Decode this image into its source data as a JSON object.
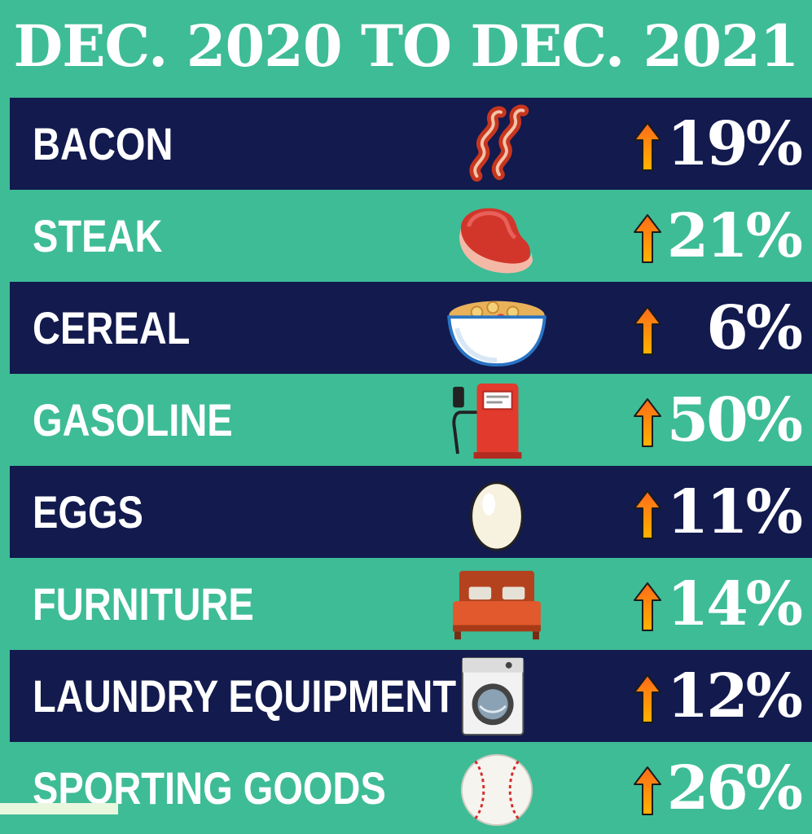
{
  "title": "DEC. 2020 TO DEC. 2021",
  "colors": {
    "background": "#3ebc96",
    "dark_band": "#121a4e",
    "text": "#ffffff",
    "arrow_top": "#ff6a1a",
    "arrow_bottom": "#ffb300"
  },
  "chart_data": {
    "type": "table",
    "title": "DEC. 2020 TO DEC. 2021",
    "columns": [
      "item",
      "icon",
      "trend",
      "change"
    ],
    "rows": [
      {
        "item": "BACON",
        "icon": "bacon-icon",
        "trend": "up",
        "change": "19%",
        "value": 19
      },
      {
        "item": "STEAK",
        "icon": "steak-icon",
        "trend": "up",
        "change": "21%",
        "value": 21
      },
      {
        "item": "CEREAL",
        "icon": "cereal-bowl-icon",
        "trend": "up",
        "change": "6%",
        "value": 6
      },
      {
        "item": "GASOLINE",
        "icon": "gas-pump-icon",
        "trend": "up",
        "change": "50%",
        "value": 50
      },
      {
        "item": "EGGS",
        "icon": "egg-icon",
        "trend": "up",
        "change": "11%",
        "value": 11
      },
      {
        "item": "FURNITURE",
        "icon": "bed-icon",
        "trend": "up",
        "change": "14%",
        "value": 14
      },
      {
        "item": "LAUNDRY EQUIPMENT",
        "icon": "washing-machine-icon",
        "trend": "up",
        "change": "12%",
        "value": 12
      },
      {
        "item": "SPORTING GOODS",
        "icon": "baseball-icon",
        "trend": "up",
        "change": "26%",
        "value": 26
      }
    ]
  }
}
